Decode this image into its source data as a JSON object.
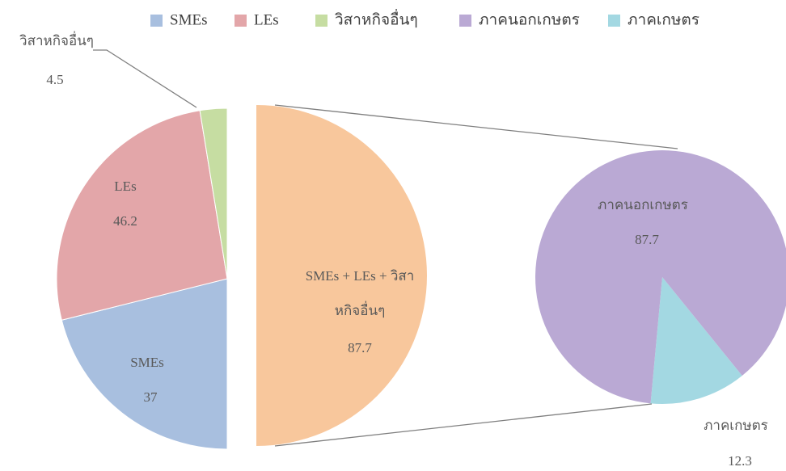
{
  "chart_data": {
    "type": "pie-of-pie",
    "legend": "top",
    "primary": {
      "categories": [
        "SMEs",
        "LEs",
        "วิสาหกิจอื่นๆ"
      ],
      "values": [
        37,
        46.2,
        4.5
      ],
      "colors": [
        "#a8bfdf",
        "#e3a6a9",
        "#c6dda2"
      ]
    },
    "exploded": {
      "label": "SMEs + LEs + วิสาหกิจอื่นๆ",
      "value": 87.7,
      "color": "#f8c79c"
    },
    "secondary": {
      "categories": [
        "ภาคนอกเกษตร",
        "ภาคเกษตร"
      ],
      "values": [
        87.7,
        12.3
      ],
      "colors": [
        "#baa9d4",
        "#a3d8e2"
      ]
    }
  }
}
